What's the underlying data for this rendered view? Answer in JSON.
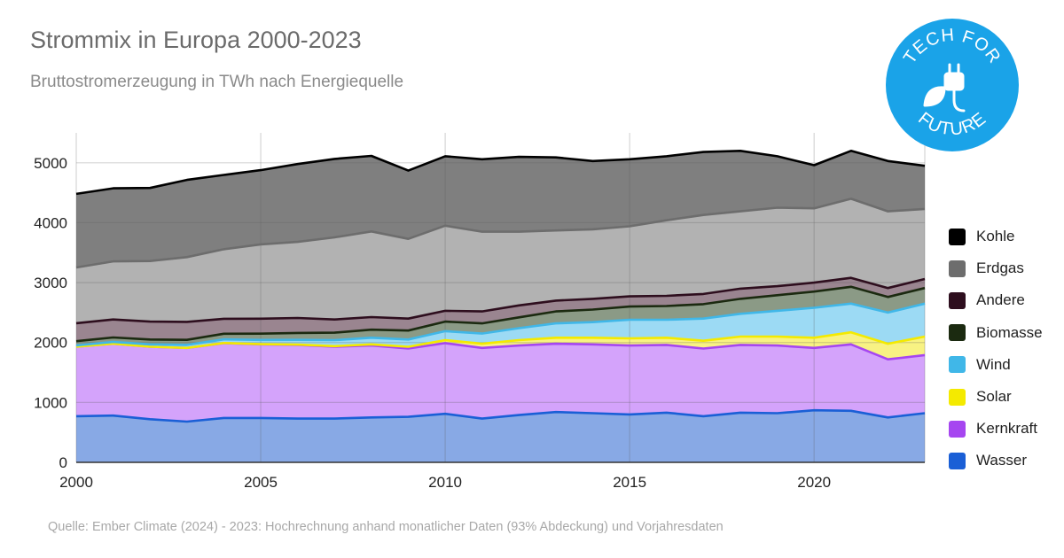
{
  "header": {
    "title": "Strommix in Europa 2000-2023",
    "subtitle": "Bruttostromerzeugung in TWh nach Energiequelle"
  },
  "footer": {
    "source": "Quelle: Ember Climate (2024) - 2023: Hochrechnung anhand monatlicher Daten (93% Abdeckung) und Vorjahresdaten"
  },
  "logo": {
    "top_text": "TECH FOR",
    "bottom_text": "FUTURE",
    "color": "#1aa3e8",
    "icon": "plug-leaf-icon"
  },
  "chart_data": {
    "type": "area",
    "stacked": true,
    "x": [
      2000,
      2001,
      2002,
      2003,
      2004,
      2005,
      2006,
      2007,
      2008,
      2009,
      2010,
      2011,
      2012,
      2013,
      2014,
      2015,
      2016,
      2017,
      2018,
      2019,
      2020,
      2021,
      2022,
      2023
    ],
    "xticks": [
      2000,
      2005,
      2010,
      2015,
      2020
    ],
    "yticks": [
      0,
      1000,
      2000,
      3000,
      4000,
      5000
    ],
    "ylim": [
      0,
      5500
    ],
    "xlim": [
      2000,
      2023
    ],
    "grid": true,
    "legend_position": "right",
    "series": [
      {
        "name": "Wasser",
        "color": "#1a5fd6",
        "fill": "#88a9e5",
        "values": [
          770,
          780,
          720,
          680,
          740,
          740,
          730,
          730,
          750,
          760,
          810,
          730,
          790,
          840,
          820,
          800,
          830,
          770,
          830,
          820,
          870,
          860,
          750,
          820
        ]
      },
      {
        "name": "Kernkraft",
        "color": "#a646f0",
        "fill": "#d4a3fb",
        "values": [
          1160,
          1200,
          1210,
          1230,
          1250,
          1230,
          1230,
          1200,
          1200,
          1140,
          1180,
          1180,
          1160,
          1140,
          1150,
          1150,
          1130,
          1130,
          1130,
          1130,
          1040,
          1110,
          970,
          970
        ]
      },
      {
        "name": "Solar",
        "color": "#f4ea00",
        "fill": "#f8f283",
        "values": [
          0,
          0,
          0,
          0,
          2,
          3,
          5,
          10,
          20,
          30,
          50,
          70,
          90,
          100,
          110,
          120,
          120,
          130,
          140,
          150,
          170,
          200,
          260,
          310
        ]
      },
      {
        "name": "Wind",
        "color": "#40b7e8",
        "fill": "#9cdaf4",
        "values": [
          22,
          30,
          40,
          50,
          60,
          70,
          80,
          100,
          110,
          120,
          150,
          170,
          200,
          240,
          260,
          310,
          300,
          370,
          380,
          430,
          500,
          480,
          520,
          550
        ]
      },
      {
        "name": "Biomasse",
        "color": "#1b2a10",
        "fill": "#8b9a86",
        "values": [
          70,
          75,
          80,
          85,
          95,
          105,
          115,
          125,
          135,
          150,
          160,
          170,
          180,
          200,
          210,
          220,
          230,
          240,
          250,
          260,
          270,
          280,
          260,
          260
        ]
      },
      {
        "name": "Andere",
        "color": "#2e0e1e",
        "fill": "#9a8590",
        "values": [
          300,
          300,
          300,
          300,
          250,
          250,
          250,
          220,
          210,
          200,
          180,
          200,
          200,
          180,
          180,
          170,
          170,
          170,
          170,
          150,
          150,
          150,
          150,
          150
        ]
      },
      {
        "name": "Erdgas",
        "color": "#6d6d6d",
        "fill": "#b2b2b2",
        "values": [
          930,
          970,
          1010,
          1080,
          1160,
          1240,
          1270,
          1370,
          1430,
          1330,
          1420,
          1330,
          1230,
          1170,
          1160,
          1170,
          1260,
          1320,
          1290,
          1310,
          1240,
          1320,
          1280,
          1170
        ]
      },
      {
        "name": "Kohle",
        "color": "#000000",
        "fill": "#7f7f7f",
        "values": [
          1230,
          1220,
          1220,
          1290,
          1240,
          1240,
          1300,
          1310,
          1260,
          1140,
          1160,
          1210,
          1250,
          1220,
          1140,
          1120,
          1070,
          1050,
          1010,
          860,
          720,
          800,
          840,
          720
        ]
      }
    ],
    "legend_order": [
      "Kohle",
      "Erdgas",
      "Andere",
      "Biomasse",
      "Wind",
      "Solar",
      "Kernkraft",
      "Wasser"
    ]
  }
}
